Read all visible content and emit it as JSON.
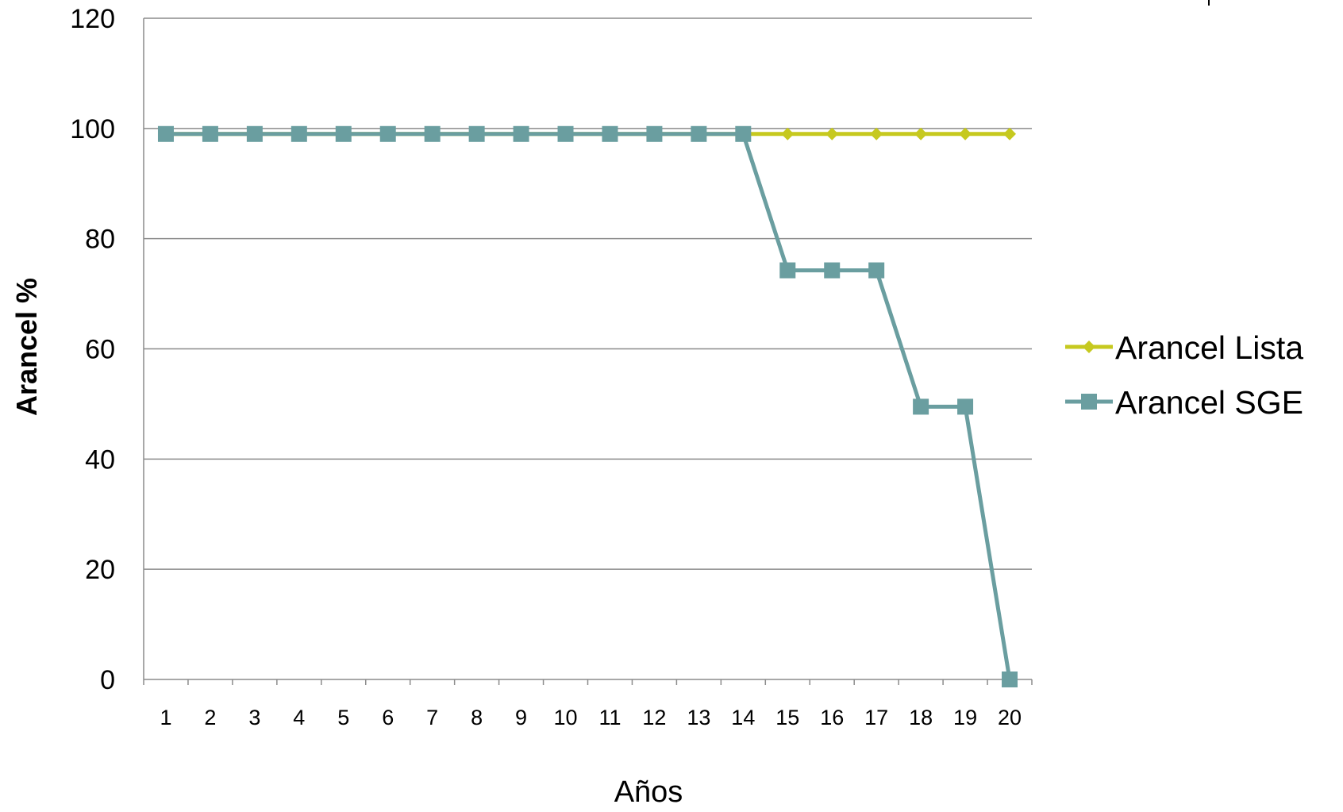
{
  "chart_data": {
    "type": "line",
    "title": "",
    "xlabel": "Años",
    "ylabel": "Arancel  %",
    "x": [
      "1",
      "2",
      "3",
      "4",
      "5",
      "6",
      "7",
      "8",
      "9",
      "10",
      "11",
      "12",
      "13",
      "14",
      "15",
      "16",
      "17",
      "18",
      "19",
      "20"
    ],
    "ylim": [
      0,
      120
    ],
    "yticks": [
      "0",
      "20",
      "40",
      "60",
      "80",
      "100",
      "120"
    ],
    "grid": true,
    "legend_position": "right",
    "series": [
      {
        "name": "Arancel Lista",
        "color": "#c6c91f",
        "marker": "diamond",
        "values": [
          99,
          99,
          99,
          99,
          99,
          99,
          99,
          99,
          99,
          99,
          99,
          99,
          99,
          99,
          99,
          99,
          99,
          99,
          99,
          99
        ]
      },
      {
        "name": "Arancel SGE",
        "color": "#6a9ea0",
        "marker": "square",
        "values": [
          99,
          99,
          99,
          99,
          99,
          99,
          99,
          99,
          99,
          99,
          99,
          99,
          99,
          99,
          74.25,
          74.25,
          74.25,
          49.5,
          49.5,
          0
        ]
      }
    ]
  }
}
